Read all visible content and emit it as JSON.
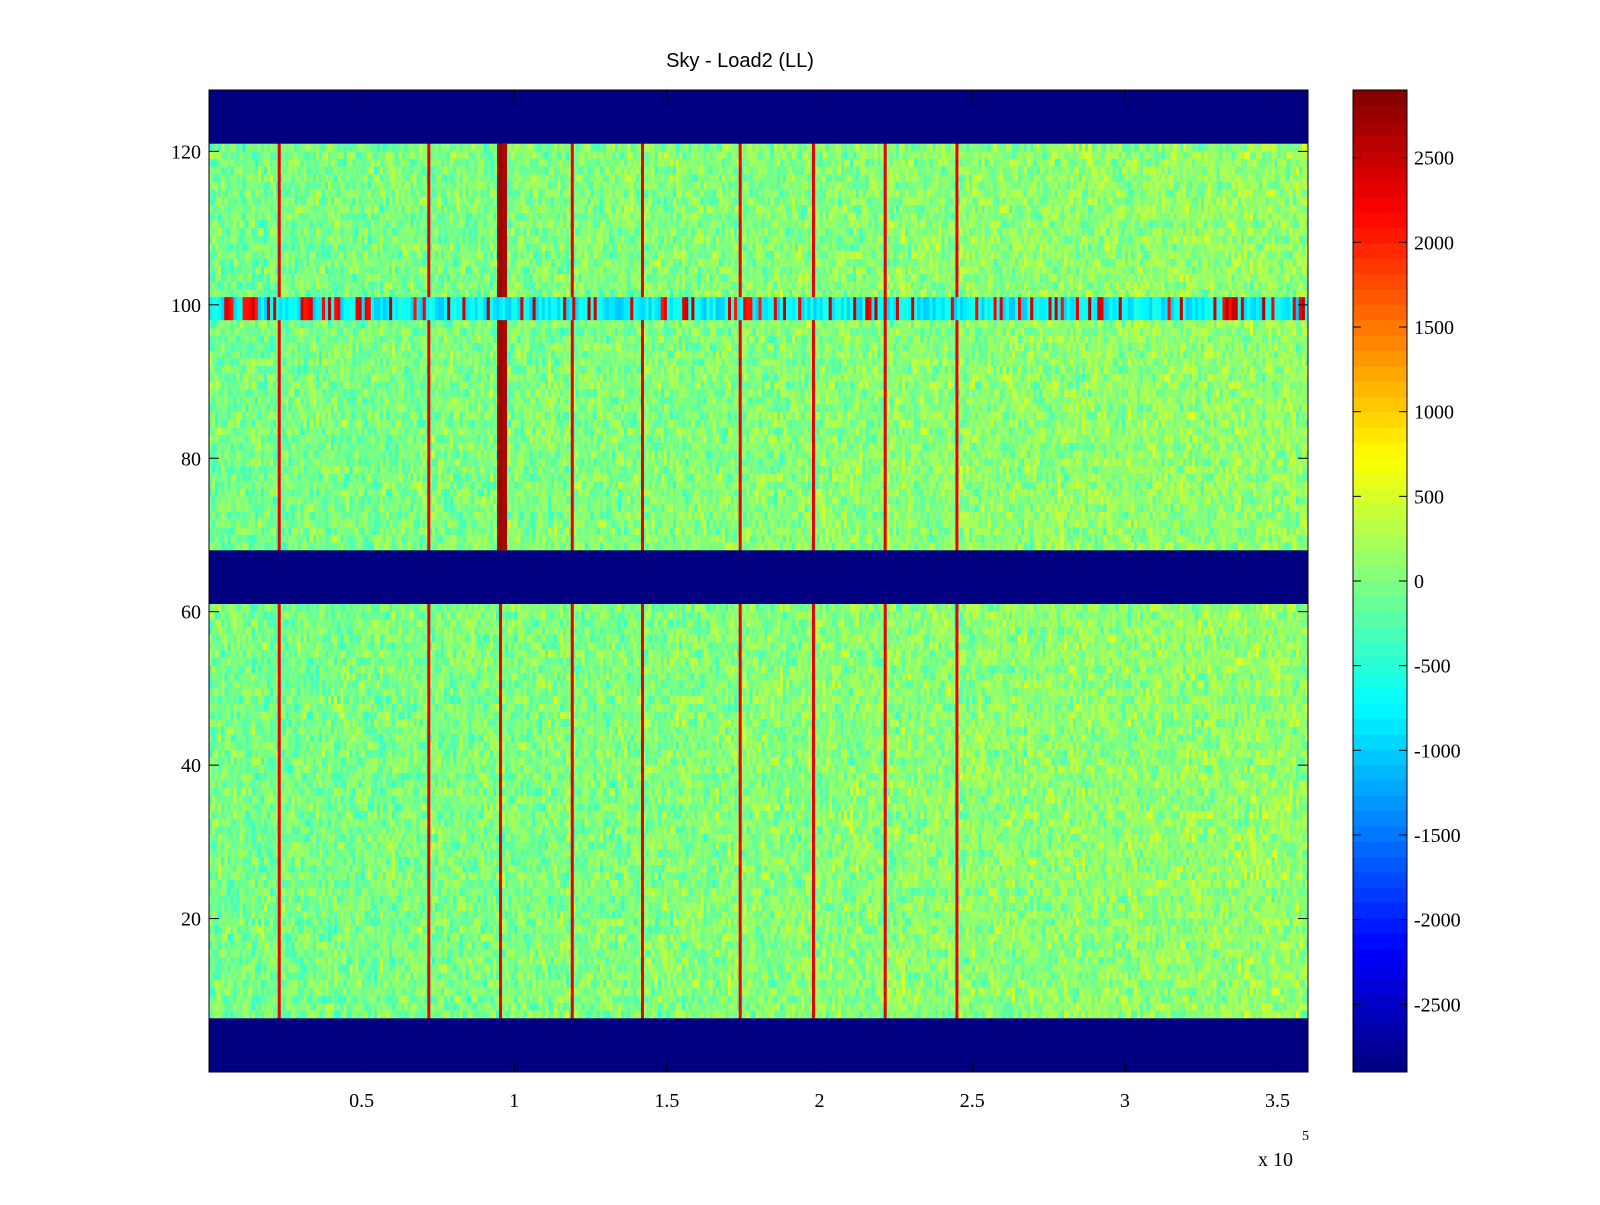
{
  "chart_data": {
    "type": "heatmap",
    "title": "Sky - Load2 (LL)",
    "xlabel": "",
    "ylabel": "",
    "colormap": "jet",
    "xlim": [
      0,
      360000
    ],
    "ylim": [
      0,
      128
    ],
    "clim": [
      -2900,
      2900
    ],
    "x_multiplier_label": "x 10",
    "x_multiplier_exponent": "5",
    "x_ticks": [
      {
        "value": 50000,
        "label": "0.5"
      },
      {
        "value": 100000,
        "label": "1"
      },
      {
        "value": 150000,
        "label": "1.5"
      },
      {
        "value": 200000,
        "label": "2"
      },
      {
        "value": 250000,
        "label": "2.5"
      },
      {
        "value": 300000,
        "label": "3"
      },
      {
        "value": 350000,
        "label": "3.5"
      }
    ],
    "y_ticks": [
      {
        "value": 20,
        "label": "20"
      },
      {
        "value": 40,
        "label": "40"
      },
      {
        "value": 60,
        "label": "60"
      },
      {
        "value": 80,
        "label": "80"
      },
      {
        "value": 100,
        "label": "100"
      },
      {
        "value": 120,
        "label": "120"
      }
    ],
    "colorbar_ticks": [
      {
        "value": 2500,
        "label": "2500"
      },
      {
        "value": 2000,
        "label": "2000"
      },
      {
        "value": 1500,
        "label": "1500"
      },
      {
        "value": 1000,
        "label": "1000"
      },
      {
        "value": 500,
        "label": "500"
      },
      {
        "value": 0,
        "label": "0"
      },
      {
        "value": -500,
        "label": "-500"
      },
      {
        "value": -1000,
        "label": "-1000"
      },
      {
        "value": -1500,
        "label": "-1500"
      },
      {
        "value": -2000,
        "label": "-2000"
      },
      {
        "value": -2500,
        "label": "-2500"
      }
    ],
    "masked_value": -2900,
    "masked_row_bands": [
      [
        0,
        7
      ],
      [
        61,
        68
      ],
      [
        121,
        128
      ]
    ],
    "background_level_range": [
      -300,
      200
    ],
    "vertical_spike_x": [
      23000,
      72000,
      95500,
      119000,
      142000,
      174000,
      198000,
      221500,
      245000
    ],
    "vertical_spike_level": 2300,
    "broad_spike": {
      "x": 96000,
      "rows": [
        68,
        121
      ],
      "level": 2700
    },
    "horizontal_feature": {
      "rows": [
        98,
        101
      ],
      "base_level": -800,
      "burst_level": 2600
    }
  }
}
